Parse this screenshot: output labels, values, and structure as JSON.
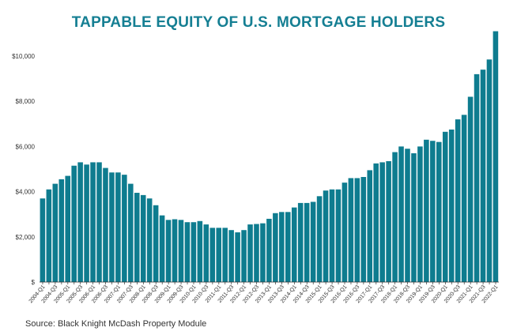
{
  "chart_data": {
    "type": "bar",
    "title": "TAPPABLE EQUITY OF U.S. MORTGAGE HOLDERS",
    "source": "Source: Black Knight McDash Property Module",
    "xlabel": "",
    "ylabel": "",
    "ylim": [
      0,
      11200
    ],
    "y_ticks": [
      0,
      2000,
      4000,
      6000,
      8000,
      10000
    ],
    "y_tick_labels": [
      "$",
      "$2,000",
      "$4,000",
      "$6,000",
      "$8,000",
      "$10,000"
    ],
    "grid": false,
    "bar_color": "#0e7c8f",
    "start_year": 2004,
    "values": [
      3700,
      4100,
      4350,
      4550,
      4700,
      5150,
      5300,
      5200,
      5300,
      5300,
      5050,
      4850,
      4850,
      4750,
      4350,
      3950,
      3850,
      3700,
      3400,
      2950,
      2750,
      2780,
      2750,
      2650,
      2650,
      2700,
      2550,
      2400,
      2400,
      2400,
      2300,
      2200,
      2300,
      2550,
      2570,
      2600,
      2800,
      3050,
      3100,
      3100,
      3300,
      3500,
      3500,
      3550,
      3800,
      4050,
      4100,
      4100,
      4400,
      4600,
      4600,
      4650,
      4950,
      5250,
      5300,
      5350,
      5750,
      6000,
      5900,
      5700,
      6000,
      6300,
      6250,
      6200,
      6650,
      6750,
      7200,
      7400,
      8200,
      9200,
      9400,
      9850,
      11100
    ]
  }
}
